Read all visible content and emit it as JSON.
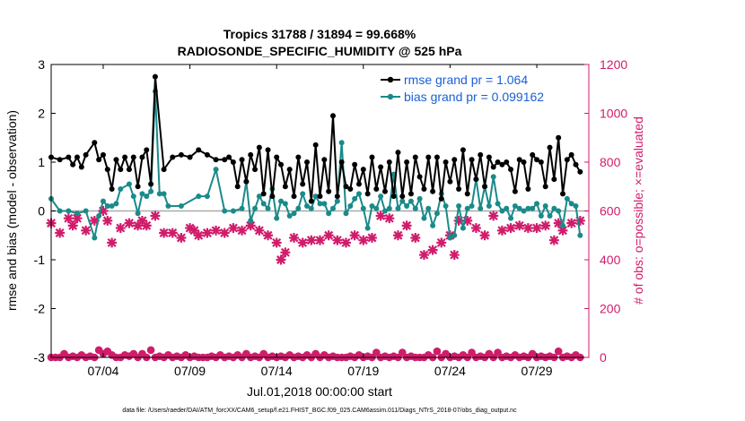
{
  "chart_data": {
    "type": "line",
    "title": "Tropics 31788 / 31894 = 99.668%",
    "subtitle": "RADIOSONDE_SPECIFIC_HUMIDITY @ 525 hPa",
    "xlabel": "Jul.01,2018 00:00:00 start",
    "ylabel": "rmse and bias (model - observation)",
    "ylabel_right": "# of obs: o=possible; ×=evaluated",
    "footnote": "data file: /Users/raeder/DAI/ATM_forcXX/CAM6_setup/f.e21.FHIST_BGC.f09_025.CAM6assim.011/Diags_NTrS_2018-07/obs_diag_output.nc",
    "xlim": [
      1,
      32
    ],
    "ylim": [
      -3,
      3
    ],
    "ylim_right": [
      0,
      1200
    ],
    "x_ticks": [
      4,
      9,
      14,
      19,
      24,
      29
    ],
    "x_tick_labels": [
      "07/04",
      "07/09",
      "07/14",
      "07/19",
      "07/24",
      "07/29"
    ],
    "y_ticks": [
      -3,
      -2,
      -1,
      0,
      1,
      2,
      3
    ],
    "y_tick_labels": [
      "-3",
      "-2",
      "-1",
      "0",
      "1",
      "2",
      "3"
    ],
    "y_ticks_right": [
      0,
      200,
      400,
      600,
      800,
      1000,
      1200
    ],
    "y_tick_labels_right": [
      "0",
      "200",
      "400",
      "600",
      "800",
      "1000",
      "1200"
    ],
    "legend_position": "top-right",
    "colors": {
      "rmse": "#000000",
      "bias": "#1a8a8a",
      "obs": "#d01c6b",
      "legend_text": "#1a5fd6",
      "zero_line": "#aaaaaa"
    },
    "series": [
      {
        "name": "rmse grand pr = 1.064",
        "x": [
          1.0,
          1.5,
          2.0,
          2.25,
          2.5,
          2.75,
          3.0,
          3.5,
          3.75,
          4.0,
          4.25,
          4.5,
          4.75,
          5.0,
          5.25,
          5.5,
          5.75,
          6.0,
          6.25,
          6.5,
          6.75,
          7.0,
          7.5,
          8.0,
          8.5,
          9.0,
          9.5,
          10.0,
          10.5,
          11.0,
          11.25,
          11.5,
          11.75,
          12.0,
          12.25,
          12.5,
          12.75,
          13.0,
          13.25,
          13.5,
          13.75,
          14.0,
          14.25,
          14.5,
          14.75,
          15.0,
          15.25,
          15.5,
          15.75,
          16.0,
          16.25,
          16.5,
          16.75,
          17.0,
          17.25,
          17.5,
          17.75,
          18.0,
          18.25,
          18.5,
          18.75,
          19.0,
          19.25,
          19.5,
          19.75,
          20.0,
          20.25,
          20.5,
          20.75,
          21.0,
          21.25,
          21.5,
          21.75,
          22.0,
          22.25,
          22.5,
          22.75,
          23.0,
          23.25,
          23.5,
          23.75,
          24.0,
          24.25,
          24.5,
          24.75,
          25.0,
          25.25,
          25.5,
          25.75,
          26.0,
          26.25,
          26.5,
          26.75,
          27.0,
          27.25,
          27.5,
          27.75,
          28.0,
          28.25,
          28.5,
          28.75,
          29.0,
          29.25,
          29.5,
          29.75,
          30.0,
          30.25,
          30.5,
          30.75,
          31.0,
          31.25,
          31.5
        ],
        "values": [
          1.1,
          1.05,
          1.1,
          0.95,
          1.1,
          0.9,
          1.15,
          1.4,
          1.05,
          1.15,
          0.85,
          0.45,
          1.05,
          0.85,
          1.1,
          0.85,
          1.1,
          0.5,
          1.1,
          1.25,
          0.55,
          2.75,
          0.85,
          1.1,
          1.15,
          1.1,
          1.25,
          1.15,
          1.05,
          1.05,
          1.1,
          1.0,
          0.5,
          1.05,
          0.6,
          1.15,
          0.85,
          1.3,
          0.35,
          1.25,
          0.3,
          1.1,
          0.95,
          0.5,
          0.85,
          0.3,
          1.1,
          0.55,
          1.0,
          0.2,
          1.35,
          0.3,
          1.05,
          0.4,
          1.95,
          0.3,
          1.0,
          0.5,
          0.45,
          0.95,
          0.55,
          0.85,
          0.35,
          1.1,
          0.45,
          0.9,
          0.4,
          1.0,
          0.3,
          1.2,
          0.3,
          1.0,
          0.35,
          1.1,
          0.7,
          0.45,
          1.1,
          0.4,
          1.1,
          0.25,
          1.0,
          0.6,
          1.05,
          0.45,
          1.25,
          0.35,
          1.05,
          0.65,
          1.15,
          0.5,
          1.1,
          0.9,
          1.0,
          0.95,
          1.0,
          0.85,
          0.4,
          1.05,
          1.0,
          0.45,
          1.15,
          1.05,
          1.0,
          0.5,
          1.3,
          0.65,
          1.5,
          0.35,
          1.05,
          1.15,
          0.95,
          0.8
        ]
      },
      {
        "name": "bias grand pr = 0.099162",
        "x": [
          1.0,
          1.5,
          2.0,
          2.5,
          3.0,
          3.5,
          3.75,
          4.0,
          4.25,
          4.5,
          4.75,
          5.0,
          5.5,
          5.75,
          6.0,
          6.25,
          6.5,
          6.75,
          7.0,
          7.25,
          7.5,
          7.75,
          8.5,
          9.5,
          10.0,
          10.5,
          11.0,
          11.5,
          12.0,
          12.25,
          12.5,
          12.75,
          13.0,
          13.25,
          13.5,
          13.75,
          14.0,
          14.25,
          14.5,
          14.75,
          15.0,
          15.25,
          15.5,
          15.75,
          16.0,
          16.25,
          16.5,
          16.75,
          17.0,
          17.25,
          17.5,
          17.75,
          18.0,
          18.25,
          18.5,
          18.75,
          19.0,
          19.25,
          19.5,
          19.75,
          20.0,
          20.25,
          20.5,
          20.75,
          21.0,
          21.25,
          21.5,
          21.75,
          22.0,
          22.25,
          22.5,
          22.75,
          23.0,
          23.25,
          23.5,
          23.75,
          24.0,
          24.25,
          24.5,
          24.75,
          25.0,
          25.25,
          25.5,
          25.75,
          26.0,
          26.25,
          26.5,
          26.75,
          27.0,
          27.25,
          27.5,
          27.75,
          28.0,
          28.25,
          28.5,
          28.75,
          29.0,
          29.25,
          29.5,
          29.75,
          30.0,
          30.25,
          30.5,
          30.75,
          31.0,
          31.25,
          31.5
        ],
        "values": [
          0.25,
          0.0,
          0.0,
          -0.05,
          0.0,
          -0.55,
          -0.1,
          0.2,
          0.1,
          0.1,
          0.15,
          0.45,
          0.55,
          0.3,
          -0.05,
          0.35,
          0.3,
          0.4,
          2.45,
          0.35,
          0.35,
          0.1,
          0.1,
          0.3,
          0.3,
          0.85,
          0.0,
          0.0,
          0.05,
          0.6,
          -0.2,
          0.05,
          0.3,
          0.15,
          0.05,
          0.45,
          -0.15,
          0.2,
          0.15,
          -0.1,
          -0.05,
          0.05,
          0.35,
          0.1,
          0.05,
          0.3,
          0.15,
          0.15,
          -0.05,
          0.05,
          0.2,
          1.4,
          -0.05,
          0.1,
          0.25,
          0.35,
          0.05,
          -0.35,
          0.1,
          0.05,
          0.3,
          0.0,
          0.05,
          0.75,
          0.05,
          0.2,
          0.1,
          0.2,
          0.05,
          0.25,
          -0.15,
          0.05,
          -0.3,
          -0.05,
          0.35,
          0.1,
          -0.55,
          -0.5,
          0.1,
          -0.35,
          0.05,
          0.1,
          0.65,
          0.05,
          0.5,
          0.1,
          0.7,
          0.15,
          0.0,
          0.05,
          -0.15,
          0.1,
          0.05,
          0.0,
          0.05,
          0.05,
          0.15,
          -0.1,
          0.1,
          -0.1,
          0.05,
          0.0,
          -0.3,
          0.25,
          0.15,
          0.1,
          -0.5
        ]
      },
      {
        "name": "# of obs possible",
        "axis": "right",
        "marker": "o",
        "x": [
          1.0,
          1.25,
          1.5,
          1.75,
          2.0,
          2.25,
          2.5,
          2.75,
          3.0,
          3.25,
          3.5,
          3.75,
          4.0,
          4.25,
          4.5,
          4.75,
          5.0,
          5.25,
          5.5,
          5.75,
          6.0,
          6.25,
          6.5,
          6.75,
          7.0,
          7.25,
          7.5,
          7.75,
          8.0,
          8.25,
          8.5,
          8.75,
          9.0,
          9.25,
          9.5,
          9.75,
          10.0,
          10.25,
          10.5,
          10.75,
          11.0,
          11.25,
          11.5,
          11.75,
          12.0,
          12.25,
          12.5,
          12.75,
          13.0,
          13.25,
          13.5,
          13.75,
          14.0,
          14.25,
          14.5,
          14.75,
          15.0,
          15.25,
          15.5,
          15.75,
          16.0,
          16.25,
          16.5,
          16.75,
          17.0,
          17.25,
          17.5,
          17.75,
          18.0,
          18.25,
          18.5,
          18.75,
          19.0,
          19.25,
          19.5,
          19.75,
          20.0,
          20.25,
          20.5,
          20.75,
          21.0,
          21.25,
          21.5,
          21.75,
          22.0,
          22.25,
          22.5,
          22.75,
          23.0,
          23.25,
          23.5,
          23.75,
          24.0,
          24.25,
          24.5,
          24.75,
          25.0,
          25.25,
          25.5,
          25.75,
          26.0,
          26.25,
          26.5,
          26.75,
          27.0,
          27.25,
          27.5,
          27.75,
          28.0,
          28.25,
          28.5,
          28.75,
          29.0,
          29.25,
          29.5,
          29.75,
          30.0,
          30.25,
          30.5,
          30.75,
          31.0,
          31.25,
          31.5
        ],
        "values": [
          0,
          0,
          0,
          15,
          0,
          5,
          0,
          10,
          0,
          5,
          0,
          30,
          15,
          25,
          10,
          0,
          0,
          10,
          5,
          15,
          0,
          15,
          0,
          30,
          0,
          5,
          0,
          10,
          0,
          5,
          0,
          10,
          0,
          5,
          0,
          0,
          0,
          5,
          0,
          10,
          0,
          5,
          0,
          10,
          0,
          15,
          0,
          5,
          0,
          15,
          0,
          5,
          0,
          5,
          0,
          10,
          0,
          5,
          0,
          10,
          0,
          15,
          0,
          10,
          0,
          5,
          0,
          0,
          0,
          5,
          0,
          10,
          0,
          5,
          0,
          20,
          0,
          5,
          0,
          5,
          0,
          20,
          0,
          5,
          0,
          0,
          0,
          10,
          0,
          25,
          0,
          15,
          0,
          5,
          0,
          10,
          0,
          20,
          0,
          5,
          0,
          15,
          0,
          20,
          0,
          5,
          0,
          10,
          0,
          5,
          0,
          15,
          0,
          5,
          0,
          5,
          0,
          25,
          0,
          5,
          0,
          10,
          0
        ]
      },
      {
        "name": "# of obs evaluated",
        "axis": "right",
        "marker": "x",
        "x": [
          1.0,
          1.5,
          2.0,
          2.25,
          2.5,
          3.0,
          3.5,
          4.0,
          4.25,
          4.5,
          5.0,
          5.5,
          6.0,
          6.25,
          6.5,
          7.0,
          7.5,
          8.0,
          8.5,
          9.0,
          9.25,
          9.5,
          10.0,
          10.5,
          11.0,
          11.5,
          12.0,
          12.5,
          13.0,
          13.5,
          14.0,
          14.25,
          14.5,
          15.0,
          15.5,
          16.0,
          16.5,
          17.0,
          17.5,
          18.0,
          18.5,
          19.0,
          19.5,
          20.0,
          20.5,
          21.0,
          21.5,
          22.0,
          22.5,
          23.0,
          23.5,
          24.0,
          24.25,
          24.5,
          25.0,
          25.5,
          26.0,
          26.5,
          27.0,
          27.5,
          28.0,
          28.5,
          29.0,
          29.5,
          30.0,
          30.25,
          30.5,
          31.0,
          31.5
        ],
        "values": [
          550,
          510,
          570,
          540,
          570,
          520,
          560,
          600,
          560,
          470,
          530,
          550,
          540,
          560,
          540,
          580,
          510,
          510,
          490,
          530,
          520,
          500,
          510,
          520,
          510,
          530,
          520,
          540,
          520,
          500,
          470,
          400,
          430,
          490,
          470,
          480,
          480,
          500,
          480,
          470,
          500,
          480,
          490,
          580,
          570,
          500,
          540,
          490,
          420,
          440,
          470,
          500,
          420,
          560,
          560,
          530,
          500,
          580,
          520,
          530,
          540,
          530,
          530,
          540,
          480,
          550,
          520,
          550,
          560
        ]
      }
    ]
  }
}
